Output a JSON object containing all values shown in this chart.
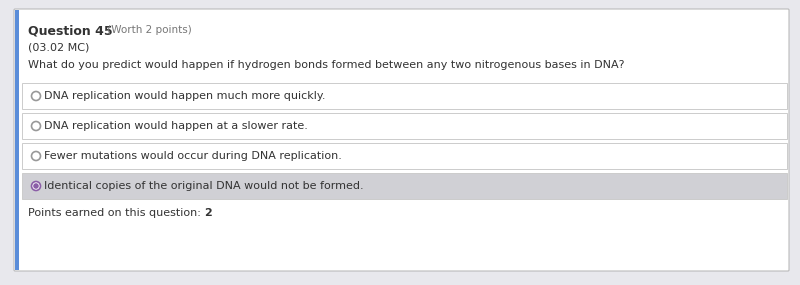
{
  "title_bold": "Question 45",
  "title_normal": " (Worth 2 points)",
  "subtitle": "(03.02 MC)",
  "question": "What do you predict would happen if hydrogen bonds formed between any two nitrogenous bases in DNA?",
  "options": [
    "DNA replication would happen much more quickly.",
    "DNA replication would happen at a slower rate.",
    "Fewer mutations would occur during DNA replication.",
    "Identical copies of the original DNA would not be formed."
  ],
  "selected_index": 3,
  "points_text": "Points earned on this question: ",
  "points_value": "2",
  "bg_color": "#e8e8ed",
  "card_color": "#ffffff",
  "option_bg_normal": "#ffffff",
  "option_bg_selected": "#d0d0d5",
  "option_border_color": "#cccccc",
  "text_color": "#333333",
  "radio_selected_color": "#8b5ea7",
  "radio_unselected_color": "#999999",
  "left_bar_color": "#5b8dd9",
  "title_fontsize": 9,
  "subtitle_fontsize": 8,
  "question_fontsize": 8,
  "option_fontsize": 8,
  "points_fontsize": 8
}
